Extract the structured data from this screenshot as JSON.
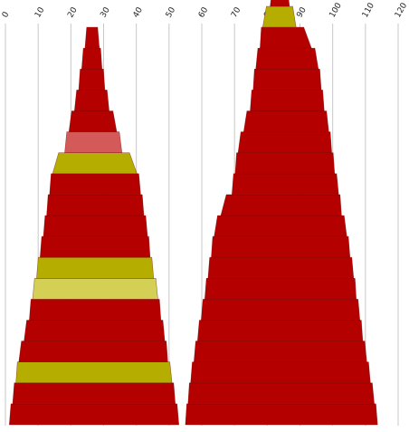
{
  "chart_data": {
    "type": "bar",
    "x_axis": {
      "min": 0,
      "max": 120,
      "ticks": [
        "0",
        "10",
        "20",
        "30",
        "40",
        "50",
        "60",
        "70",
        "80",
        "90",
        "100",
        "110",
        "120"
      ],
      "position": "top",
      "grid": true
    },
    "colors": {
      "dark_red": "#b50000",
      "olive": "#b5ad00",
      "light_red": "#d45a5a",
      "light_olive": "#d4cf55"
    },
    "series": [
      {
        "layers_bottom_to_top": [
          {
            "left": 1.2,
            "right": 53.0,
            "color": "dark_red"
          },
          {
            "left": 2.2,
            "right": 51.9,
            "color": "dark_red"
          },
          {
            "left": 3.2,
            "right": 50.9,
            "color": "olive"
          },
          {
            "left": 4.1,
            "right": 49.6,
            "color": "dark_red"
          },
          {
            "left": 5.7,
            "right": 48.7,
            "color": "dark_red"
          },
          {
            "left": 7.3,
            "right": 47.5,
            "color": "dark_red"
          },
          {
            "left": 8.3,
            "right": 46.6,
            "color": "light_olive"
          },
          {
            "left": 9.5,
            "right": 45.3,
            "color": "olive"
          },
          {
            "left": 10.6,
            "right": 44.2,
            "color": "dark_red"
          },
          {
            "left": 11.6,
            "right": 43.4,
            "color": "dark_red"
          },
          {
            "left": 12.6,
            "right": 42.3,
            "color": "dark_red"
          },
          {
            "left": 13.5,
            "right": 41.3,
            "color": "dark_red"
          },
          {
            "left": 14.4,
            "right": 40.2,
            "color": "olive"
          },
          {
            "left": 18.1,
            "right": 35.6,
            "color": "light_red"
          },
          {
            "left": 19.4,
            "right": 34.0,
            "color": "dark_red"
          },
          {
            "left": 21.1,
            "right": 31.7,
            "color": "dark_red"
          },
          {
            "left": 22.4,
            "right": 30.4,
            "color": "dark_red"
          },
          {
            "left": 23.3,
            "right": 29.5,
            "color": "dark_red"
          },
          {
            "left": 24.3,
            "right": 28.7,
            "color": "dark_red"
          }
        ]
      },
      {
        "layers_bottom_to_top": [
          {
            "left": 55.0,
            "right": 113.7,
            "color": "dark_red"
          },
          {
            "left": 55.8,
            "right": 112.7,
            "color": "dark_red"
          },
          {
            "left": 56.6,
            "right": 111.5,
            "color": "dark_red"
          },
          {
            "left": 57.6,
            "right": 110.4,
            "color": "dark_red"
          },
          {
            "left": 58.7,
            "right": 109.2,
            "color": "dark_red"
          },
          {
            "left": 59.8,
            "right": 108.3,
            "color": "dark_red"
          },
          {
            "left": 60.9,
            "right": 107.2,
            "color": "dark_red"
          },
          {
            "left": 61.9,
            "right": 106.4,
            "color": "dark_red"
          },
          {
            "left": 62.9,
            "right": 105.3,
            "color": "dark_red"
          },
          {
            "left": 63.8,
            "right": 104.3,
            "color": "dark_red"
          },
          {
            "left": 65.8,
            "right": 102.7,
            "color": "dark_red"
          },
          {
            "left": 69.2,
            "right": 101.8,
            "color": "dark_red"
          },
          {
            "left": 70.2,
            "right": 100.6,
            "color": "dark_red"
          },
          {
            "left": 71.1,
            "right": 99.7,
            "color": "dark_red"
          },
          {
            "left": 72.8,
            "right": 98.8,
            "color": "dark_red"
          },
          {
            "left": 74.8,
            "right": 97.4,
            "color": "dark_red"
          },
          {
            "left": 75.7,
            "right": 96.5,
            "color": "dark_red"
          },
          {
            "left": 76.5,
            "right": 95.6,
            "color": "dark_red"
          },
          {
            "left": 77.8,
            "right": 93.5,
            "color": "dark_red"
          },
          {
            "left": 78.6,
            "right": 88.8,
            "color": "olive"
          },
          {
            "left": 80.9,
            "right": 86.8,
            "color": "dark_red"
          }
        ]
      }
    ]
  }
}
